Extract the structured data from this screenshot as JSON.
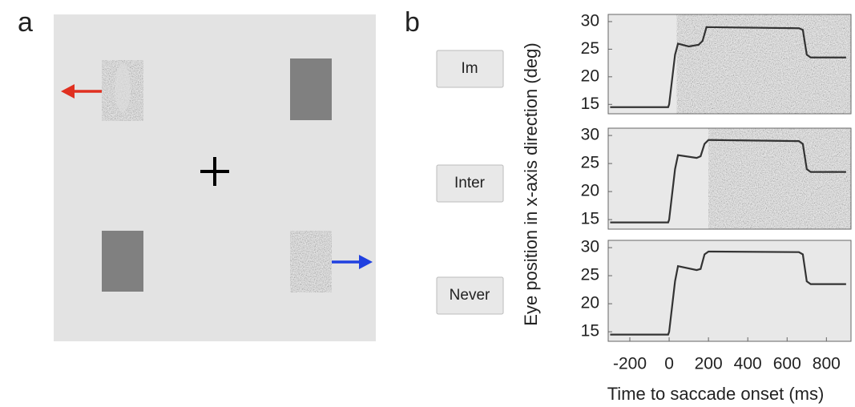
{
  "panel_labels": [
    "a",
    "b"
  ],
  "chart_data": [
    {
      "type": "line",
      "condition": "Im",
      "noise_onset": 40,
      "xlim": [
        -310,
        925
      ],
      "ylim": [
        13.3,
        31.3
      ],
      "yticks": [
        15,
        20,
        25,
        30
      ],
      "x": [
        -300,
        -5,
        0,
        30,
        45,
        100,
        150,
        170,
        190,
        660,
        680,
        700,
        720,
        900
      ],
      "series": [
        {
          "color": "#333333",
          "values": [
            14.5,
            14.5,
            15,
            24,
            26,
            25.5,
            25.8,
            26.5,
            29,
            28.8,
            28.5,
            24,
            23.5,
            23.5
          ]
        }
      ]
    },
    {
      "type": "line",
      "condition": "Inter",
      "noise_onset": 200,
      "ylabel": "Eye position in x-axis direction (deg)",
      "xlim": [
        -310,
        925
      ],
      "ylim": [
        13.3,
        31.3
      ],
      "yticks": [
        15,
        20,
        25,
        30
      ],
      "x": [
        -300,
        -5,
        0,
        30,
        45,
        140,
        160,
        180,
        200,
        660,
        680,
        700,
        720,
        900
      ],
      "series": [
        {
          "color": "#333333",
          "values": [
            14.5,
            14.5,
            15,
            24,
            26.5,
            26,
            26.3,
            28.5,
            29.2,
            29,
            28.5,
            24,
            23.5,
            23.5
          ]
        }
      ]
    },
    {
      "type": "line",
      "condition": "Never",
      "xlabel": "Time to saccade onset (ms)",
      "xlim": [
        -310,
        925
      ],
      "ylim": [
        13.3,
        31.3
      ],
      "yticks": [
        15,
        20,
        25,
        30
      ],
      "xticks": [
        -200,
        0,
        200,
        400,
        600,
        800
      ],
      "x": [
        -300,
        -5,
        0,
        30,
        45,
        140,
        160,
        180,
        200,
        660,
        680,
        700,
        720,
        900
      ],
      "series": [
        {
          "color": "#333333",
          "values": [
            14.5,
            14.5,
            15,
            24,
            26.7,
            26,
            26.2,
            28.8,
            29.3,
            29.2,
            28.8,
            24,
            23.5,
            23.5
          ]
        }
      ]
    }
  ]
}
